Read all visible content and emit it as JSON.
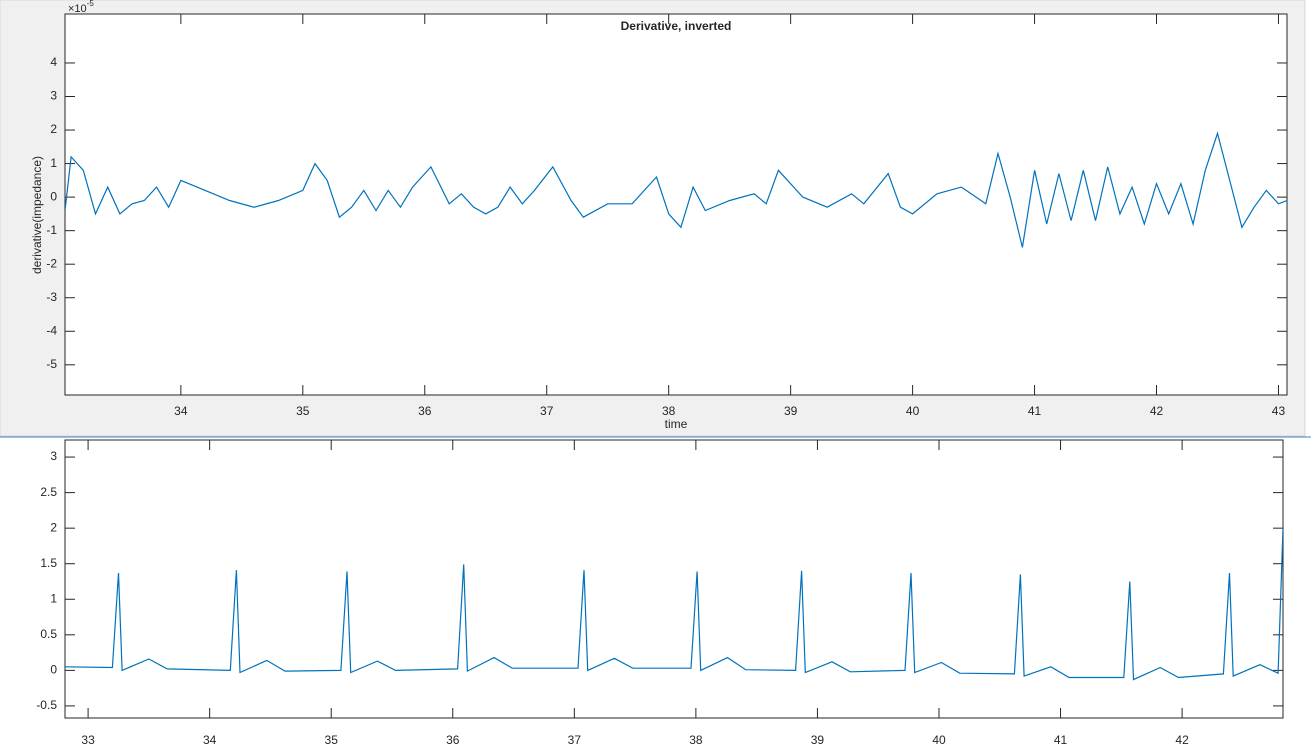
{
  "chart_data": [
    {
      "type": "line",
      "title": "Derivative, inverted",
      "xlabel": "time",
      "ylabel": "derivative(impedance)",
      "y_exponent_base": "×10",
      "y_exponent": "-5",
      "xlim": [
        33.05,
        43.07
      ],
      "ylim": [
        -5.9,
        5.46
      ],
      "xticks": [
        34,
        35,
        36,
        37,
        38,
        39,
        40,
        41,
        42,
        43
      ],
      "yticks": [
        -5,
        -4,
        -3,
        -2,
        -1,
        0,
        1,
        2,
        3,
        4
      ],
      "x": [
        33.05,
        33.1,
        33.2,
        33.3,
        33.4,
        33.5,
        33.6,
        33.7,
        33.8,
        33.9,
        34.0,
        34.2,
        34.4,
        34.6,
        34.8,
        35.0,
        35.1,
        35.2,
        35.3,
        35.4,
        35.5,
        35.6,
        35.7,
        35.8,
        35.9,
        36.05,
        36.2,
        36.3,
        36.4,
        36.5,
        36.6,
        36.7,
        36.8,
        36.9,
        37.05,
        37.2,
        37.3,
        37.5,
        37.7,
        37.8,
        37.9,
        38.0,
        38.1,
        38.2,
        38.3,
        38.5,
        38.7,
        38.8,
        38.9,
        39.1,
        39.3,
        39.5,
        39.6,
        39.8,
        39.9,
        40.0,
        40.2,
        40.4,
        40.6,
        40.7,
        40.8,
        40.9,
        41.0,
        41.1,
        41.2,
        41.3,
        41.4,
        41.5,
        41.6,
        41.7,
        41.8,
        41.9,
        42.0,
        42.1,
        42.2,
        42.3,
        42.4,
        42.5,
        42.6,
        42.7,
        42.8,
        42.9,
        43.0,
        43.07
      ],
      "series": [
        {
          "color": "#0072bd",
          "values": [
            -0.4,
            1.2,
            0.8,
            -0.5,
            0.3,
            -0.5,
            -0.2,
            -0.1,
            0.3,
            -0.3,
            0.5,
            0.2,
            -0.1,
            -0.3,
            -0.1,
            0.2,
            1.0,
            0.5,
            -0.6,
            -0.3,
            0.2,
            -0.4,
            0.2,
            -0.3,
            0.3,
            0.9,
            -0.2,
            0.1,
            -0.3,
            -0.5,
            -0.3,
            0.3,
            -0.2,
            0.2,
            0.9,
            -0.1,
            -0.6,
            -0.2,
            -0.2,
            0.2,
            0.6,
            -0.5,
            -0.9,
            0.3,
            -0.4,
            -0.1,
            0.1,
            -0.2,
            0.8,
            0.0,
            -0.3,
            0.1,
            -0.2,
            0.7,
            -0.3,
            -0.5,
            0.1,
            0.3,
            -0.2,
            1.3,
            0.0,
            -1.5,
            0.8,
            -0.8,
            0.7,
            -0.7,
            0.8,
            -0.7,
            0.9,
            -0.5,
            0.3,
            -0.8,
            0.4,
            -0.5,
            0.4,
            -0.8,
            0.8,
            1.9,
            0.5,
            -0.9,
            -0.3,
            0.2,
            -0.2,
            -0.1
          ]
        }
      ]
    },
    {
      "type": "line",
      "xlim": [
        32.81,
        42.83
      ],
      "ylim": [
        -0.67,
        3.24
      ],
      "xticks": [
        33,
        34,
        35,
        36,
        37,
        38,
        39,
        40,
        41,
        42
      ],
      "yticks": [
        -0.5,
        0,
        0.5,
        1,
        1.5,
        2,
        2.5,
        3
      ],
      "x": [
        32.81,
        33.2,
        33.25,
        33.28,
        33.5,
        33.65,
        34.17,
        34.22,
        34.25,
        34.47,
        34.62,
        35.08,
        35.13,
        35.16,
        35.38,
        35.53,
        36.04,
        36.09,
        36.12,
        36.34,
        36.49,
        37.03,
        37.08,
        37.11,
        37.33,
        37.48,
        37.96,
        38.01,
        38.04,
        38.26,
        38.41,
        38.82,
        38.87,
        38.9,
        39.12,
        39.27,
        39.72,
        39.77,
        39.8,
        40.02,
        40.17,
        40.62,
        40.67,
        40.7,
        40.92,
        41.07,
        41.52,
        41.57,
        41.6,
        41.82,
        41.97,
        42.34,
        42.39,
        42.42,
        42.64,
        42.79,
        42.83
      ],
      "series": [
        {
          "color": "#0072bd",
          "values": [
            0.05,
            0.04,
            1.37,
            0.0,
            0.16,
            0.02,
            0.0,
            1.41,
            -0.03,
            0.14,
            -0.01,
            0.0,
            1.39,
            -0.03,
            0.13,
            0.0,
            0.02,
            1.49,
            -0.01,
            0.18,
            0.03,
            0.03,
            1.41,
            0.0,
            0.17,
            0.03,
            0.03,
            1.39,
            0.0,
            0.18,
            0.01,
            0.0,
            1.4,
            -0.03,
            0.12,
            -0.02,
            0.0,
            1.37,
            -0.03,
            0.11,
            -0.04,
            -0.05,
            1.35,
            -0.08,
            0.05,
            -0.1,
            -0.1,
            1.25,
            -0.13,
            0.04,
            -0.1,
            -0.05,
            1.37,
            -0.08,
            0.08,
            -0.04,
            2.0
          ]
        }
      ]
    }
  ]
}
